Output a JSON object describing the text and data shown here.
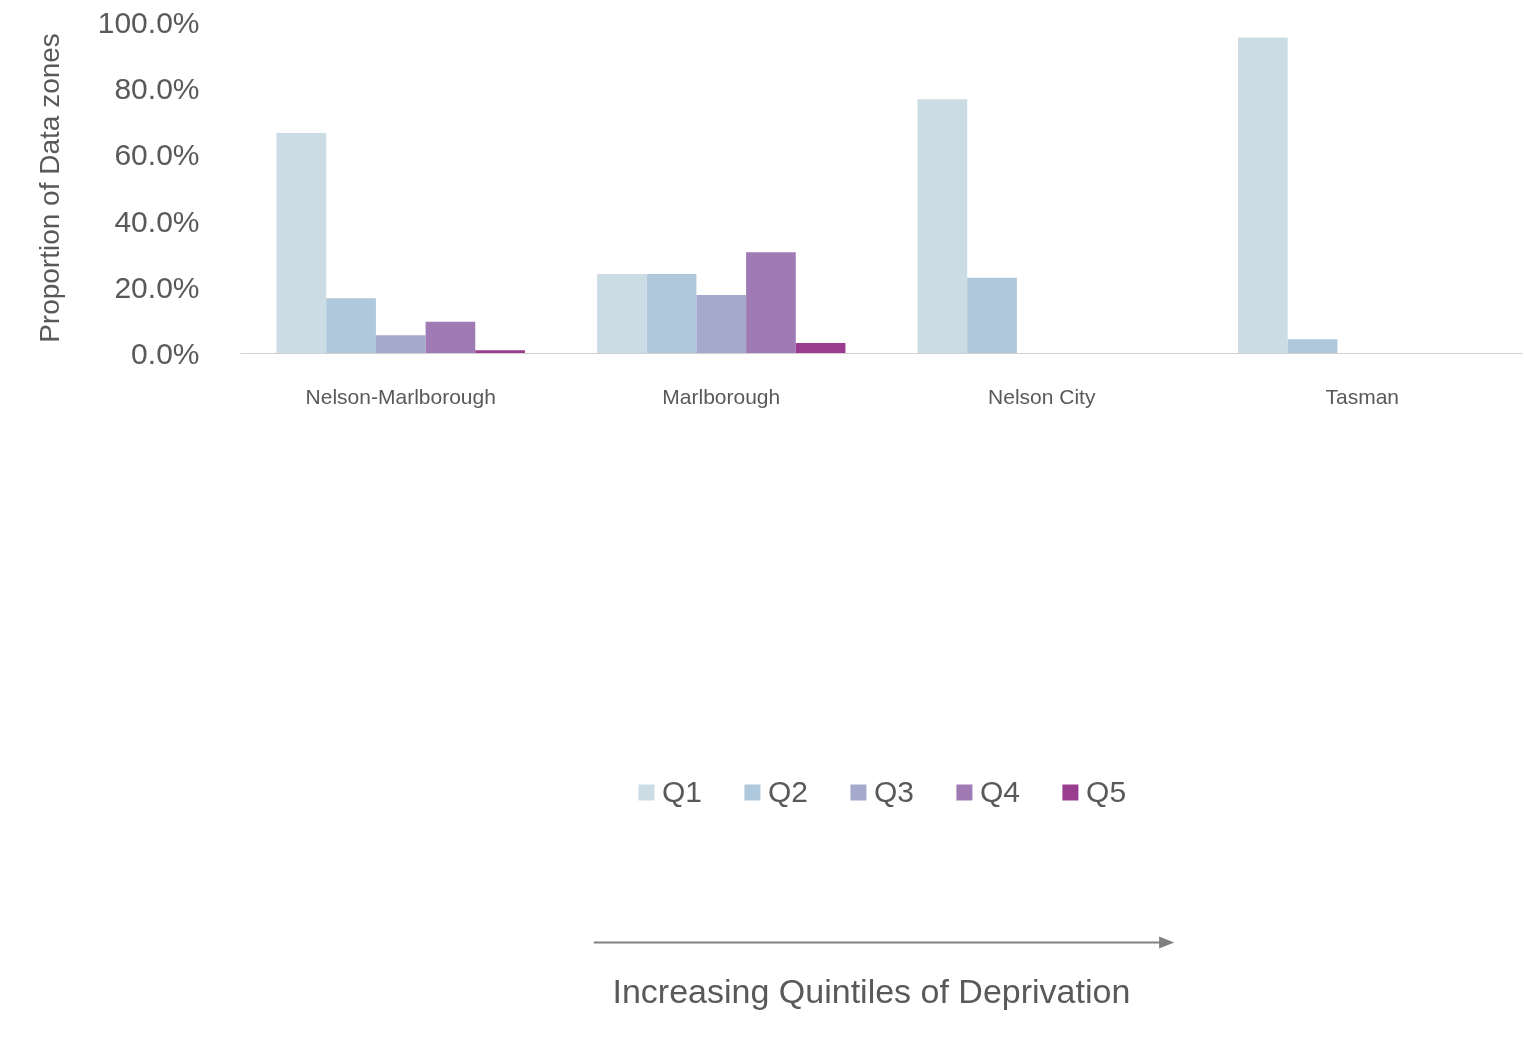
{
  "chart_data": {
    "type": "bar",
    "ylabel": "Proportion of Data zones",
    "legend_title": "Increasing Quintiles of Deprivation",
    "categories": [
      "Nelson-Marlborough",
      "Marlborough",
      "Nelson City",
      "Tasman"
    ],
    "series": [
      {
        "name": "Q1",
        "color": "#ccdce5",
        "values": [
          66.6,
          24.0,
          76.8,
          95.5
        ]
      },
      {
        "name": "Q2",
        "color": "#b0c8dc",
        "values": [
          16.7,
          24.0,
          22.9,
          4.3
        ]
      },
      {
        "name": "Q3",
        "color": "#a3aacb",
        "values": [
          5.5,
          17.7,
          0,
          0
        ]
      },
      {
        "name": "Q4",
        "color": "#a07ab5",
        "values": [
          9.6,
          30.6,
          0,
          0
        ]
      },
      {
        "name": "Q5",
        "color": "#9b3d8f",
        "values": [
          1.0,
          3.2,
          0,
          0
        ]
      }
    ],
    "ylim": [
      0,
      100
    ],
    "yticks": [
      {
        "value": 0,
        "label": "0.0%"
      },
      {
        "value": 20,
        "label": "20.0%"
      },
      {
        "value": 40,
        "label": "40.0%"
      },
      {
        "value": 60,
        "label": "60.0%"
      },
      {
        "value": 80,
        "label": "80.0%"
      },
      {
        "value": 100,
        "label": "100.0%"
      }
    ],
    "grid": false,
    "legend": "bottom"
  }
}
